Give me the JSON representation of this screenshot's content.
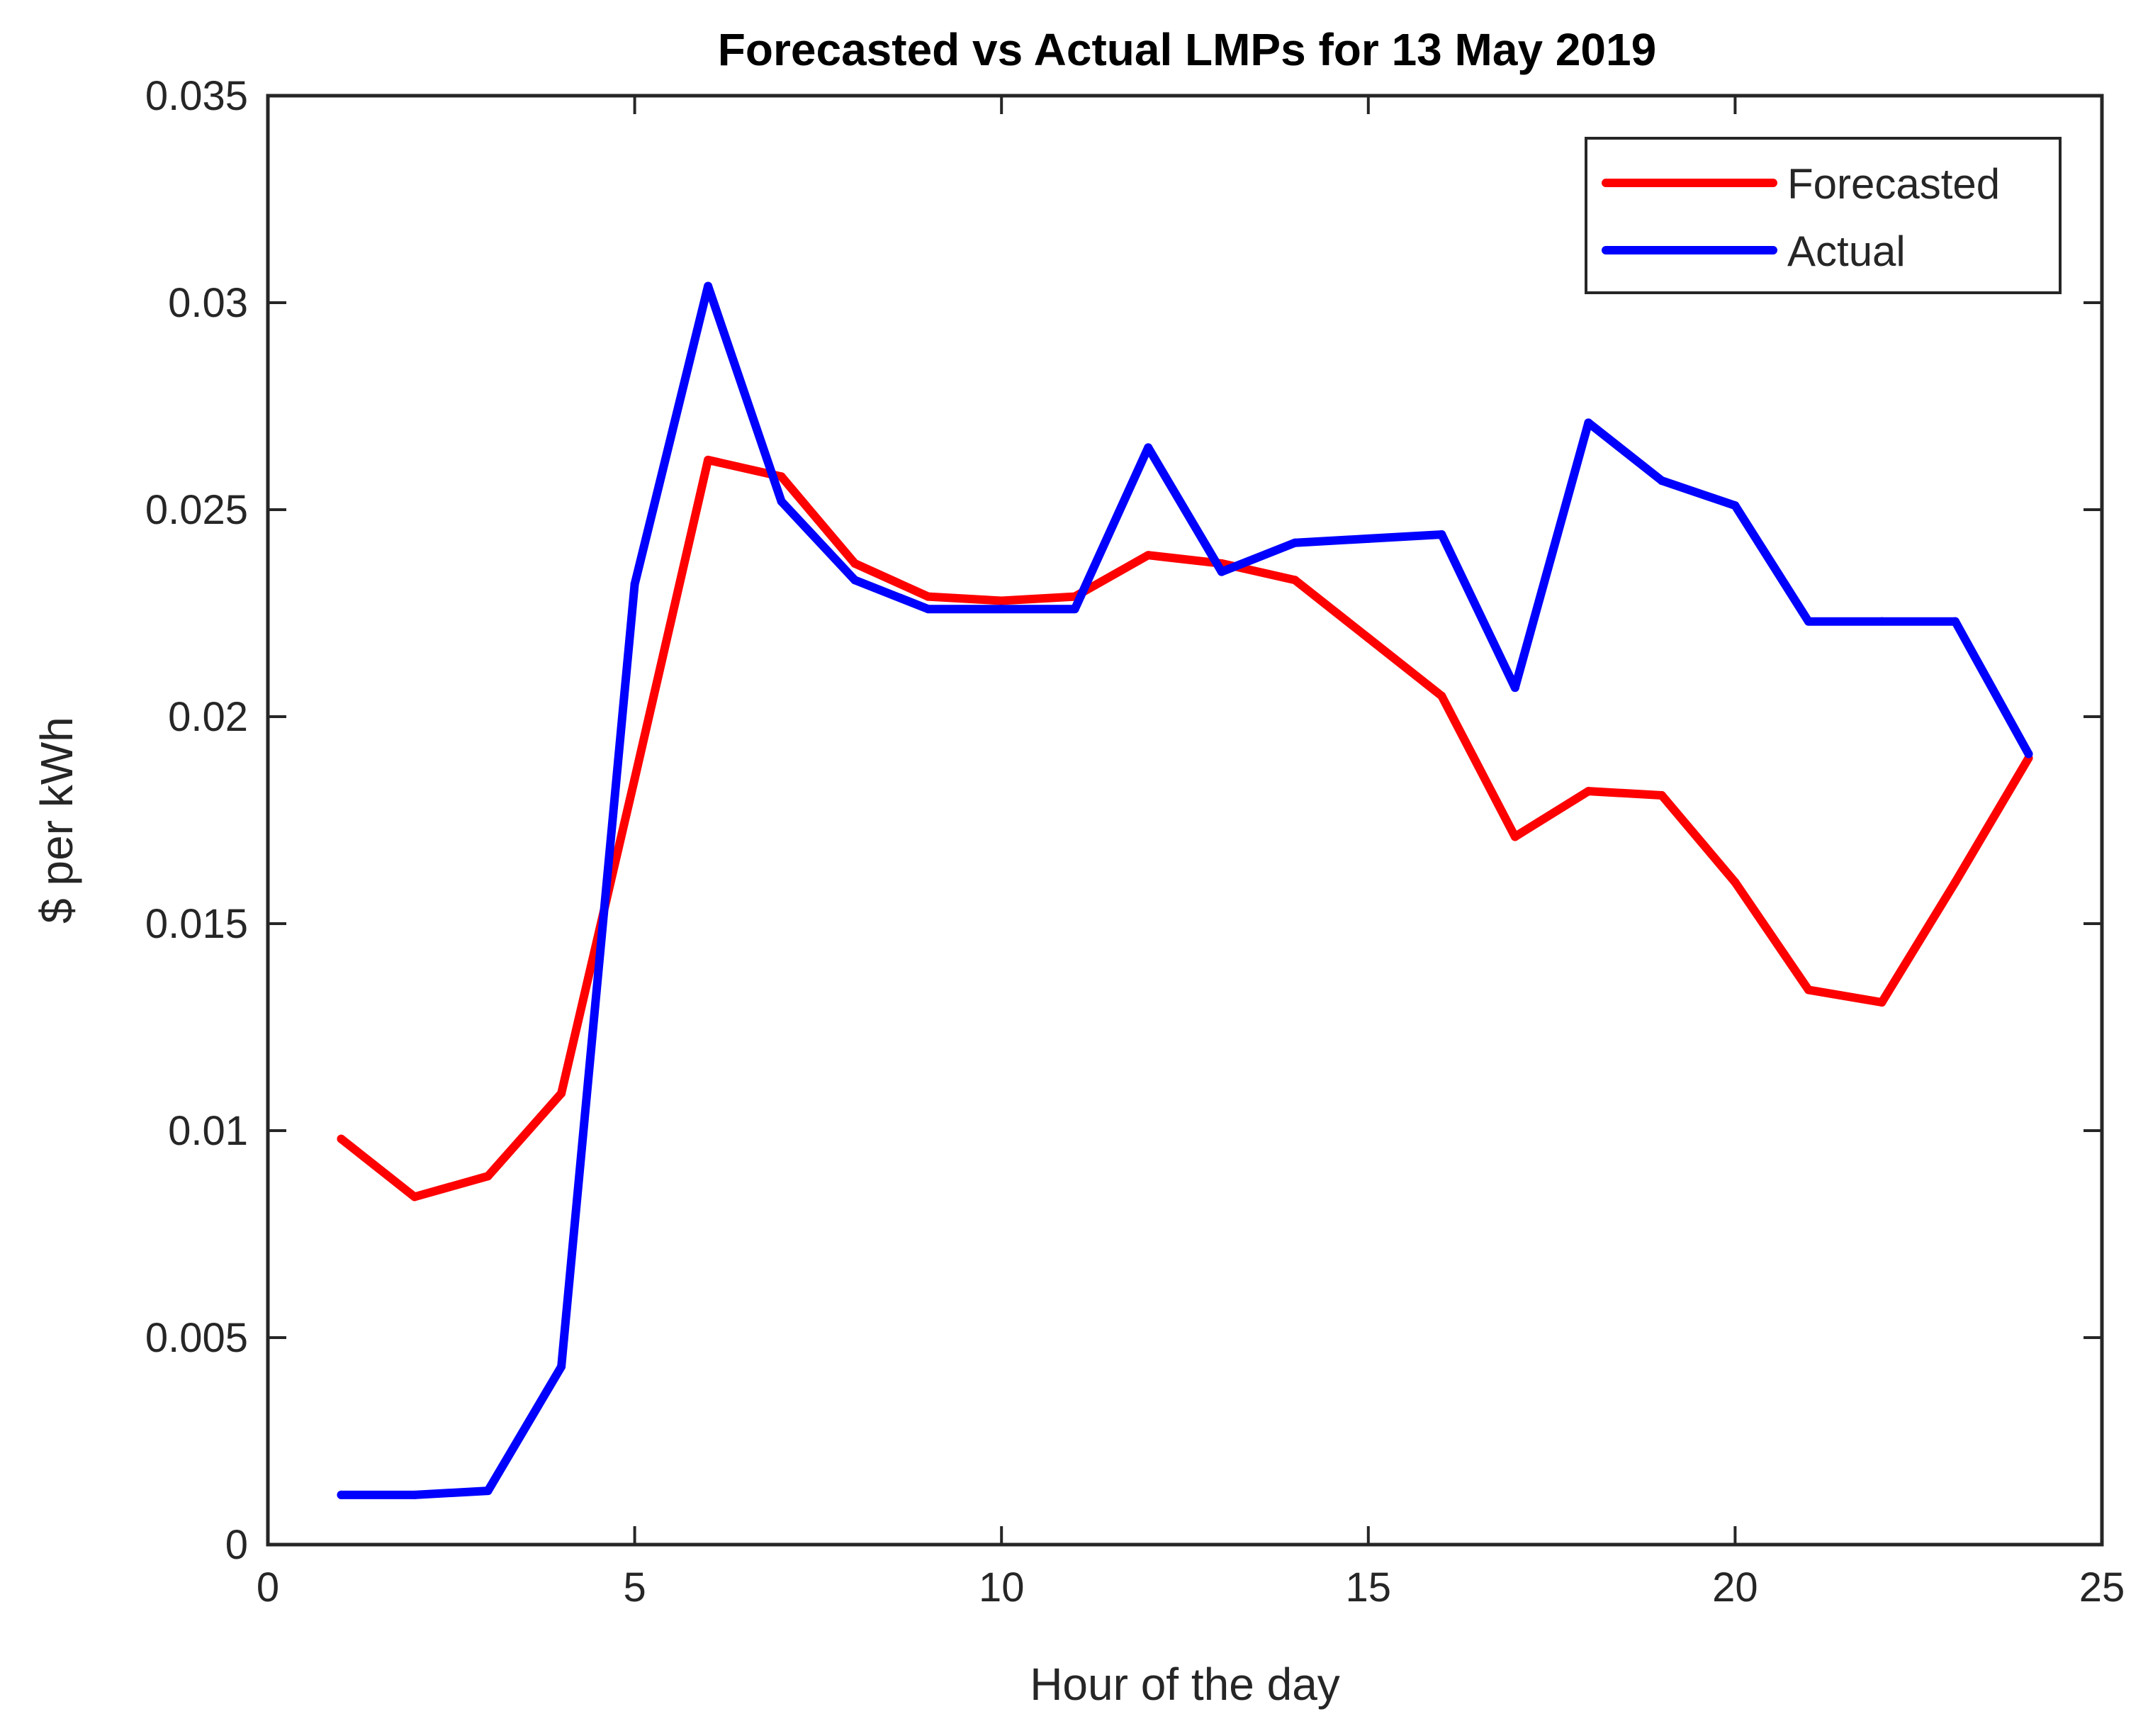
{
  "chart_data": {
    "type": "line",
    "title": "Forecasted vs Actual LMPs for 13 May 2019",
    "xlabel": "Hour of the day",
    "ylabel": "$ per kWh",
    "xlim": [
      0,
      25
    ],
    "ylim": [
      0,
      0.035
    ],
    "xticks": [
      0,
      5,
      10,
      15,
      20,
      25
    ],
    "xtick_labels": [
      "0",
      "5",
      "10",
      "15",
      "20",
      "25"
    ],
    "yticks": [
      0,
      0.005,
      0.01,
      0.015,
      0.02,
      0.025,
      0.03,
      0.035
    ],
    "ytick_labels": [
      "0",
      "0.005",
      "0.01",
      "0.015",
      "0.02",
      "0.025",
      "0.03",
      "0.035"
    ],
    "grid": false,
    "legend_position": "top-right",
    "x": [
      1,
      2,
      3,
      4,
      5,
      6,
      7,
      8,
      9,
      10,
      11,
      12,
      13,
      14,
      15,
      16,
      17,
      18,
      19,
      20,
      21,
      22,
      23,
      24
    ],
    "series": [
      {
        "name": "Forecasted",
        "color": "#ff0000",
        "values": [
          0.0098,
          0.0084,
          0.0089,
          0.0109,
          0.0185,
          0.0262,
          0.0258,
          0.0237,
          0.0229,
          0.0228,
          0.0229,
          0.0239,
          0.0237,
          0.0233,
          0.0219,
          0.0205,
          0.0171,
          0.0182,
          0.0181,
          0.016,
          0.0134,
          0.0131,
          0.016,
          0.019
        ]
      },
      {
        "name": "Actual",
        "color": "#0000ff",
        "values": [
          0.0012,
          0.0012,
          0.0013,
          0.0043,
          0.0232,
          0.0304,
          0.0252,
          0.0233,
          0.0226,
          0.0226,
          0.0226,
          0.0265,
          0.0235,
          0.0242,
          0.0243,
          0.0244,
          0.0207,
          0.0271,
          0.0257,
          0.0251,
          0.0223,
          0.0223,
          0.0223,
          0.0191
        ]
      }
    ]
  }
}
